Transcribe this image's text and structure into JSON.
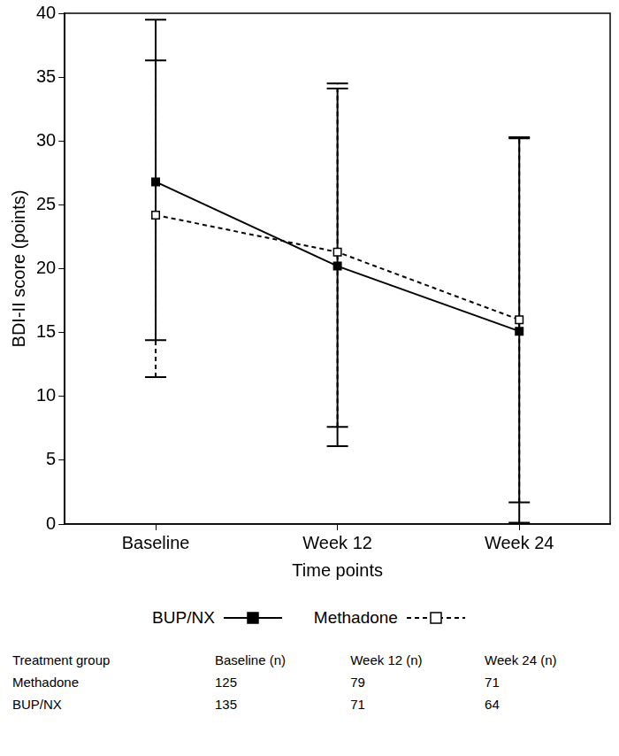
{
  "chart_data": {
    "type": "line",
    "x_label": "Time points",
    "y_label": "BDI-II score (points)",
    "categories": [
      "Baseline",
      "Week 12",
      "Week 24"
    ],
    "series": [
      {
        "name": "BUP/NX",
        "color": "#000000",
        "marker": "filled_square",
        "line_style": "solid",
        "values": [
          26.8,
          20.2,
          15.1
        ],
        "error_bars": [
          [
            14.4,
            39.5
          ],
          [
            6.1,
            34.1
          ],
          [
            0.1,
            30.2
          ]
        ]
      },
      {
        "name": "Methadone",
        "color": "#000000",
        "marker": "open_square",
        "line_style": "dashed",
        "values": [
          24.2,
          21.3,
          16.0
        ],
        "error_bars": [
          [
            11.5,
            36.3
          ],
          [
            7.6,
            34.5
          ],
          [
            1.7,
            30.3
          ]
        ]
      }
    ],
    "ylim": [
      0,
      40
    ],
    "yticks": [
      0,
      5,
      10,
      15,
      20,
      25,
      30,
      35,
      40
    ],
    "grid": false,
    "legend": "bottom"
  },
  "table": {
    "header": [
      "Treatment group",
      "Baseline (n)",
      "Week 12 (n)",
      "Week 24 (n)"
    ],
    "rows": [
      [
        "Methadone",
        125,
        79,
        71
      ],
      [
        "BUP/NX",
        135,
        71,
        64
      ]
    ]
  }
}
